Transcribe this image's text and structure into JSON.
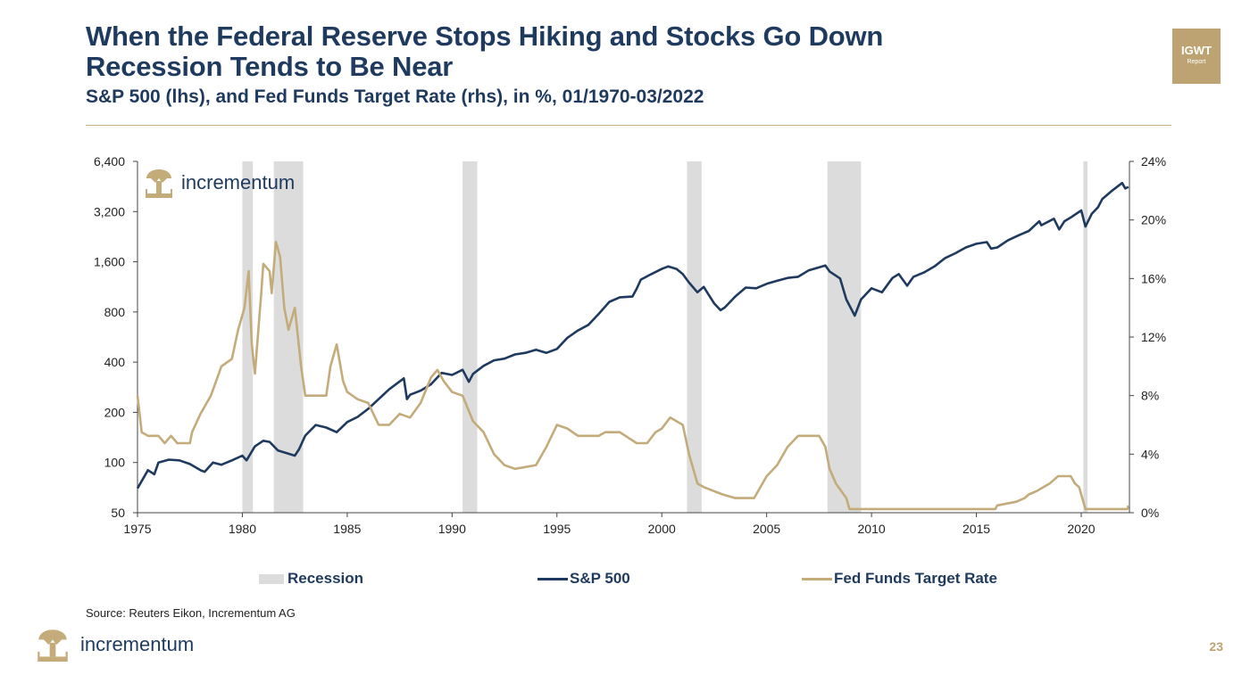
{
  "header": {
    "title_line1": "When the Federal Reserve Stops Hiking and Stocks Go Down",
    "title_line2": "Recession Tends to Be Near",
    "subtitle": "S&P 500 (lhs), and Fed Funds Target Rate (rhs), in %, 01/1970-03/2022"
  },
  "badge": {
    "line1": "IGWT",
    "line2": "Report"
  },
  "brand": {
    "name": "incrementum",
    "icon": "tree-logo-icon"
  },
  "source": "Source: Reuters Eikon, Incrementum AG",
  "page_number": "23",
  "colors": {
    "navy": "#1f3a5f",
    "gold": "#c3ab7a",
    "recession": "#dcdcdc"
  },
  "chart_data": {
    "type": "line",
    "x_ticks": [
      "1975",
      "1980",
      "1985",
      "1990",
      "1995",
      "2000",
      "2005",
      "2010",
      "2015",
      "2020"
    ],
    "xlim": [
      1975,
      2022.3
    ],
    "y_left": {
      "ticks": [
        50,
        100,
        200,
        400,
        800,
        1600,
        3200,
        6400
      ],
      "tick_labels": [
        "50",
        "100",
        "200",
        "400",
        "800",
        "1,600",
        "3,200",
        "6,400"
      ],
      "scale": "log2",
      "range": [
        50,
        6400
      ]
    },
    "y_right": {
      "ticks": [
        0,
        4,
        8,
        12,
        16,
        20,
        24
      ],
      "tick_labels": [
        "0%",
        "4%",
        "8%",
        "12%",
        "16%",
        "20%",
        "24%"
      ],
      "range": [
        0,
        24
      ]
    },
    "recessions": [
      [
        1980.0,
        1980.5
      ],
      [
        1981.5,
        1982.9
      ],
      [
        1990.5,
        1991.2
      ],
      [
        2001.2,
        2001.9
      ],
      [
        2007.9,
        2009.5
      ],
      [
        2020.1,
        2020.3
      ]
    ],
    "series": [
      {
        "name": "S&P 500",
        "axis": "left",
        "color": "#1f3a5f",
        "points": [
          [
            1975.0,
            70
          ],
          [
            1975.5,
            90
          ],
          [
            1975.8,
            85
          ],
          [
            1976.0,
            100
          ],
          [
            1976.5,
            104
          ],
          [
            1977.0,
            103
          ],
          [
            1977.5,
            98
          ],
          [
            1978.0,
            90
          ],
          [
            1978.2,
            88
          ],
          [
            1978.6,
            100
          ],
          [
            1979.0,
            97
          ],
          [
            1979.5,
            103
          ],
          [
            1980.0,
            110
          ],
          [
            1980.2,
            103
          ],
          [
            1980.6,
            125
          ],
          [
            1981.0,
            135
          ],
          [
            1981.3,
            133
          ],
          [
            1981.7,
            118
          ],
          [
            1982.0,
            115
          ],
          [
            1982.5,
            110
          ],
          [
            1982.7,
            120
          ],
          [
            1983.0,
            145
          ],
          [
            1983.5,
            168
          ],
          [
            1984.0,
            162
          ],
          [
            1984.5,
            152
          ],
          [
            1985.0,
            175
          ],
          [
            1985.5,
            188
          ],
          [
            1986.0,
            210
          ],
          [
            1986.5,
            240
          ],
          [
            1987.0,
            275
          ],
          [
            1987.7,
            320
          ],
          [
            1987.85,
            240
          ],
          [
            1988.0,
            255
          ],
          [
            1988.5,
            270
          ],
          [
            1989.0,
            295
          ],
          [
            1989.5,
            345
          ],
          [
            1990.0,
            335
          ],
          [
            1990.5,
            360
          ],
          [
            1990.8,
            305
          ],
          [
            1991.0,
            340
          ],
          [
            1991.5,
            380
          ],
          [
            1992.0,
            410
          ],
          [
            1992.5,
            420
          ],
          [
            1993.0,
            445
          ],
          [
            1993.5,
            455
          ],
          [
            1994.0,
            475
          ],
          [
            1994.5,
            455
          ],
          [
            1995.0,
            480
          ],
          [
            1995.5,
            560
          ],
          [
            1996.0,
            620
          ],
          [
            1996.5,
            670
          ],
          [
            1997.0,
            780
          ],
          [
            1997.5,
            920
          ],
          [
            1998.0,
            980
          ],
          [
            1998.6,
            990
          ],
          [
            1998.8,
            1100
          ],
          [
            1999.0,
            1250
          ],
          [
            1999.5,
            1350
          ],
          [
            2000.0,
            1450
          ],
          [
            2000.3,
            1500
          ],
          [
            2000.7,
            1450
          ],
          [
            2001.0,
            1350
          ],
          [
            2001.3,
            1200
          ],
          [
            2001.7,
            1050
          ],
          [
            2002.0,
            1130
          ],
          [
            2002.5,
            900
          ],
          [
            2002.8,
            820
          ],
          [
            2003.0,
            850
          ],
          [
            2003.5,
            990
          ],
          [
            2004.0,
            1120
          ],
          [
            2004.5,
            1110
          ],
          [
            2005.0,
            1180
          ],
          [
            2005.5,
            1230
          ],
          [
            2006.0,
            1280
          ],
          [
            2006.5,
            1300
          ],
          [
            2007.0,
            1420
          ],
          [
            2007.8,
            1520
          ],
          [
            2008.0,
            1400
          ],
          [
            2008.5,
            1270
          ],
          [
            2008.8,
            950
          ],
          [
            2009.2,
            760
          ],
          [
            2009.5,
            950
          ],
          [
            2010.0,
            1110
          ],
          [
            2010.5,
            1050
          ],
          [
            2011.0,
            1280
          ],
          [
            2011.3,
            1350
          ],
          [
            2011.7,
            1150
          ],
          [
            2012.0,
            1300
          ],
          [
            2012.5,
            1380
          ],
          [
            2013.0,
            1500
          ],
          [
            2013.5,
            1680
          ],
          [
            2014.0,
            1800
          ],
          [
            2014.5,
            1950
          ],
          [
            2015.0,
            2050
          ],
          [
            2015.5,
            2100
          ],
          [
            2015.7,
            1920
          ],
          [
            2016.0,
            1950
          ],
          [
            2016.5,
            2150
          ],
          [
            2017.0,
            2300
          ],
          [
            2017.5,
            2450
          ],
          [
            2018.0,
            2800
          ],
          [
            2018.1,
            2650
          ],
          [
            2018.7,
            2900
          ],
          [
            2018.95,
            2500
          ],
          [
            2019.2,
            2800
          ],
          [
            2019.5,
            2950
          ],
          [
            2020.0,
            3250
          ],
          [
            2020.2,
            2600
          ],
          [
            2020.5,
            3100
          ],
          [
            2020.8,
            3400
          ],
          [
            2021.0,
            3800
          ],
          [
            2021.5,
            4300
          ],
          [
            2021.95,
            4750
          ],
          [
            2022.1,
            4400
          ],
          [
            2022.25,
            4500
          ]
        ]
      },
      {
        "name": "Fed Funds Target Rate",
        "axis": "right",
        "color": "#c3ab7a",
        "points": [
          [
            1975.0,
            8.0
          ],
          [
            1975.2,
            5.5
          ],
          [
            1975.5,
            5.25
          ],
          [
            1976.0,
            5.25
          ],
          [
            1976.3,
            4.75
          ],
          [
            1976.6,
            5.25
          ],
          [
            1976.9,
            4.75
          ],
          [
            1977.5,
            4.75
          ],
          [
            1977.6,
            5.5
          ],
          [
            1978.0,
            6.75
          ],
          [
            1978.5,
            8.0
          ],
          [
            1979.0,
            10.0
          ],
          [
            1979.5,
            10.5
          ],
          [
            1979.8,
            12.5
          ],
          [
            1980.1,
            14.0
          ],
          [
            1980.3,
            16.5
          ],
          [
            1980.45,
            11.5
          ],
          [
            1980.6,
            9.5
          ],
          [
            1980.9,
            15.0
          ],
          [
            1981.0,
            17.0
          ],
          [
            1981.3,
            16.5
          ],
          [
            1981.4,
            15.0
          ],
          [
            1981.6,
            18.5
          ],
          [
            1981.8,
            17.5
          ],
          [
            1982.0,
            14.0
          ],
          [
            1982.2,
            12.5
          ],
          [
            1982.5,
            14.0
          ],
          [
            1982.8,
            10.0
          ],
          [
            1983.0,
            8.0
          ],
          [
            1984.0,
            8.0
          ],
          [
            1984.2,
            10.0
          ],
          [
            1984.5,
            11.5
          ],
          [
            1984.8,
            9.0
          ],
          [
            1985.0,
            8.25
          ],
          [
            1985.5,
            7.75
          ],
          [
            1986.0,
            7.5
          ],
          [
            1986.5,
            6.0
          ],
          [
            1987.0,
            6.0
          ],
          [
            1987.5,
            6.75
          ],
          [
            1988.0,
            6.5
          ],
          [
            1988.5,
            7.5
          ],
          [
            1989.0,
            9.25
          ],
          [
            1989.3,
            9.75
          ],
          [
            1989.6,
            9.0
          ],
          [
            1990.0,
            8.25
          ],
          [
            1990.5,
            8.0
          ],
          [
            1991.0,
            6.25
          ],
          [
            1991.5,
            5.5
          ],
          [
            1992.0,
            4.0
          ],
          [
            1992.5,
            3.25
          ],
          [
            1993.0,
            3.0
          ],
          [
            1994.0,
            3.25
          ],
          [
            1994.5,
            4.5
          ],
          [
            1995.0,
            6.0
          ],
          [
            1995.5,
            5.75
          ],
          [
            1996.0,
            5.25
          ],
          [
            1997.0,
            5.25
          ],
          [
            1997.3,
            5.5
          ],
          [
            1998.0,
            5.5
          ],
          [
            1998.8,
            4.75
          ],
          [
            1999.3,
            4.75
          ],
          [
            1999.7,
            5.5
          ],
          [
            2000.0,
            5.75
          ],
          [
            2000.4,
            6.5
          ],
          [
            2001.0,
            6.0
          ],
          [
            2001.3,
            4.0
          ],
          [
            2001.7,
            2.0
          ],
          [
            2002.0,
            1.75
          ],
          [
            2002.9,
            1.25
          ],
          [
            2003.5,
            1.0
          ],
          [
            2004.4,
            1.0
          ],
          [
            2005.0,
            2.5
          ],
          [
            2005.5,
            3.25
          ],
          [
            2006.0,
            4.5
          ],
          [
            2006.5,
            5.25
          ],
          [
            2007.5,
            5.25
          ],
          [
            2007.8,
            4.5
          ],
          [
            2008.0,
            3.0
          ],
          [
            2008.3,
            2.0
          ],
          [
            2008.8,
            1.0
          ],
          [
            2008.95,
            0.25
          ],
          [
            2015.9,
            0.25
          ],
          [
            2016.0,
            0.5
          ],
          [
            2016.9,
            0.75
          ],
          [
            2017.3,
            1.0
          ],
          [
            2017.5,
            1.25
          ],
          [
            2017.9,
            1.5
          ],
          [
            2018.2,
            1.75
          ],
          [
            2018.5,
            2.0
          ],
          [
            2018.9,
            2.5
          ],
          [
            2019.5,
            2.5
          ],
          [
            2019.7,
            2.0
          ],
          [
            2019.9,
            1.75
          ],
          [
            2020.2,
            0.25
          ],
          [
            2022.2,
            0.25
          ],
          [
            2022.25,
            0.5
          ]
        ]
      }
    ],
    "legend": [
      "Recession",
      "S&P 500",
      "Fed Funds Target Rate"
    ],
    "grid": false,
    "legend_position": "bottom"
  }
}
